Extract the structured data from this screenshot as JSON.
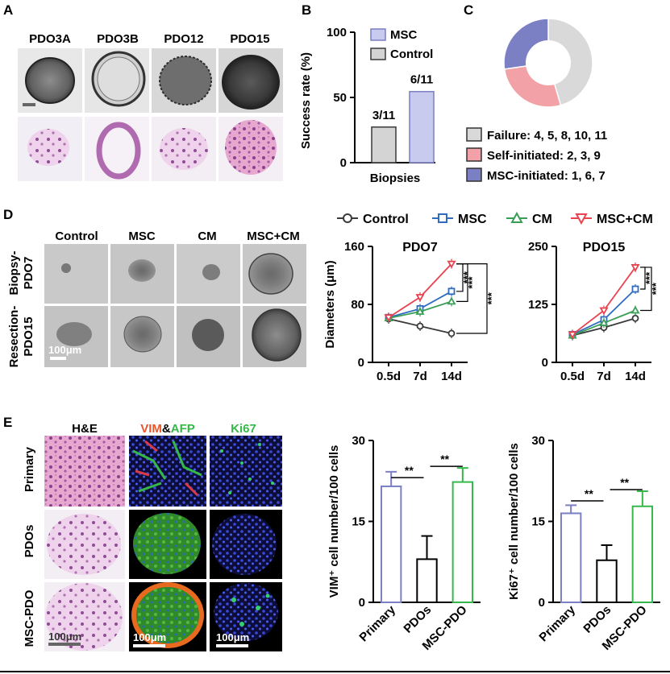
{
  "panel_letters": {
    "a": "A",
    "b": "B",
    "c": "C",
    "d": "D",
    "e": "E"
  },
  "panel_a": {
    "columns": [
      "PDO3A",
      "PDO3B",
      "PDO12",
      "PDO15"
    ]
  },
  "panel_d": {
    "columns": [
      "Control",
      "MSC",
      "CM",
      "MSC+CM"
    ],
    "row_labels": [
      [
        "Biopsy-",
        "PDO7"
      ],
      [
        "Resection-",
        "PDO15"
      ]
    ],
    "scale_bar": "100μm",
    "legend": [
      "Control",
      "MSC",
      "CM",
      "MSC+CM"
    ]
  },
  "panel_e": {
    "columns": {
      "he": "H&E",
      "vim": "VIM",
      "amp": "&",
      "afp": "AFP",
      "ki67": "Ki67"
    },
    "row_labels": [
      "Primary",
      "PDOs",
      "MSC-PDO"
    ],
    "scale_bars": [
      "100μm",
      "100μm",
      "100μm"
    ]
  },
  "colors": {
    "msc": "#7b7fc4",
    "msc_fill": "#c9cbee",
    "control": "#3a3a3a",
    "control_fill": "#d4d4d4",
    "self": "#f2a2a6",
    "failure": "#d9d9d9",
    "blue": "#2f6cc0",
    "green": "#3a9e56",
    "red": "#e8434f",
    "primary_bar": "#7b7fc4",
    "pdos_bar": "#000000",
    "mscpdo_bar": "#35b84a"
  },
  "chart_data": [
    {
      "id": "B",
      "type": "bar",
      "categories": [
        "Biopsies"
      ],
      "series": [
        {
          "name": "Control",
          "values": [
            27.3
          ],
          "label": "3/11"
        },
        {
          "name": "MSC",
          "values": [
            54.5
          ],
          "label": "6/11"
        }
      ],
      "ylabel": "Success rate (%)",
      "xlabel": "Biopsies",
      "ylim": [
        0,
        100
      ],
      "yticks": [
        0,
        50,
        100
      ]
    },
    {
      "id": "C",
      "type": "pie",
      "slices": [
        {
          "name": "Failure",
          "text": "Failure: 4, 5, 8, 10, 11",
          "value": 5
        },
        {
          "name": "Self-initiated",
          "text": "Self-initiated: 2, 3, 9",
          "value": 3
        },
        {
          "name": "MSC-initiated",
          "text": "MSC-initiated: 1, 6, 7",
          "value": 3
        }
      ]
    },
    {
      "id": "D1",
      "type": "line",
      "title": "PDO7",
      "x": [
        "0.5d",
        "7d",
        "14d"
      ],
      "ylabel": "Diameters (μm)",
      "ylim": [
        0,
        160
      ],
      "yticks": [
        0,
        80,
        160
      ],
      "series": [
        {
          "name": "Control",
          "values": [
            60,
            50,
            40
          ]
        },
        {
          "name": "MSC",
          "values": [
            62,
            74,
            98
          ]
        },
        {
          "name": "CM",
          "values": [
            61,
            70,
            84
          ]
        },
        {
          "name": "MSC+CM",
          "values": [
            62,
            90,
            136
          ]
        }
      ],
      "significance": [
        "***",
        "***",
        "***"
      ]
    },
    {
      "id": "D2",
      "type": "line",
      "title": "PDO15",
      "x": [
        "0.5d",
        "7d",
        "14d"
      ],
      "ylim": [
        0,
        250
      ],
      "yticks": [
        0,
        125,
        250
      ],
      "series": [
        {
          "name": "Control",
          "values": [
            58,
            75,
            95
          ]
        },
        {
          "name": "MSC",
          "values": [
            60,
            92,
            158
          ]
        },
        {
          "name": "CM",
          "values": [
            58,
            85,
            112
          ]
        },
        {
          "name": "MSC+CM",
          "values": [
            60,
            112,
            205
          ]
        }
      ],
      "significance": [
        "***",
        "***"
      ]
    },
    {
      "id": "E1",
      "type": "bar",
      "categories": [
        "Primary",
        "PDOs",
        "MSC-PDO"
      ],
      "values": [
        21.5,
        8,
        22.3
      ],
      "errors": [
        2.7,
        4.3,
        2.6
      ],
      "ylabel": "VIM⁺ cell number/100 cells",
      "ylim": [
        0,
        30
      ],
      "yticks": [
        0,
        15,
        30
      ],
      "significance": [
        "**",
        "**"
      ]
    },
    {
      "id": "E2",
      "type": "bar",
      "categories": [
        "Primary",
        "PDOs",
        "MSC-PDO"
      ],
      "values": [
        16.5,
        7.8,
        17.8
      ],
      "errors": [
        1.5,
        2.8,
        2.8
      ],
      "ylabel": "Ki67⁺ cell number/100 cells",
      "ylim": [
        0,
        30
      ],
      "yticks": [
        0,
        15,
        30
      ],
      "significance": [
        "**",
        "**"
      ]
    }
  ]
}
